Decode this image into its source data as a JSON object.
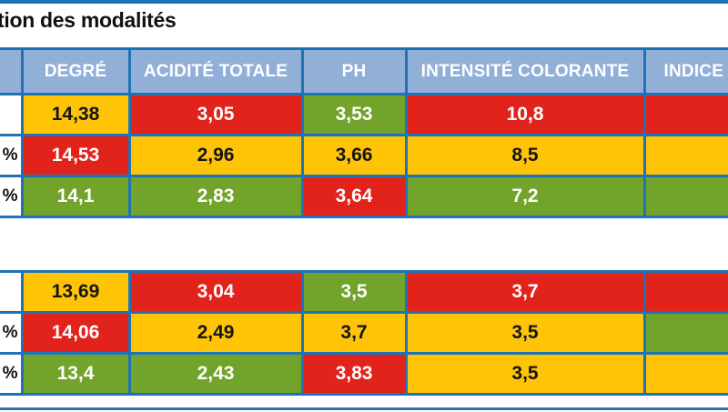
{
  "title": "tion des modalités",
  "colors": {
    "status_red": "#E2231B",
    "status_yellow": "#FFC405",
    "status_green": "#72A32B",
    "header_blue": "#92AFD8",
    "border_blue": "#1E73B8",
    "top_rule_blue": "#1E73BE",
    "bottom_rule_blue": "#2E75B6"
  },
  "header": {
    "label": "",
    "degre": "DEGRÉ",
    "acidite": "ACIDITÉ TOTALE",
    "ph": "PH",
    "intensite": "INTENSITÉ COLORANTE",
    "indice": "INDICE"
  },
  "table1": {
    "rows": [
      {
        "label": "",
        "degre": {
          "v": "14,38",
          "c": "yellow"
        },
        "acidite": {
          "v": "3,05",
          "c": "red"
        },
        "ph": {
          "v": "3,53",
          "c": "green"
        },
        "intensite": {
          "v": "10,8",
          "c": "red"
        },
        "indice": {
          "v": "",
          "c": "red"
        }
      },
      {
        "label": "%",
        "degre": {
          "v": "14,53",
          "c": "red"
        },
        "acidite": {
          "v": "2,96",
          "c": "yellow"
        },
        "ph": {
          "v": "3,66",
          "c": "yellow"
        },
        "intensite": {
          "v": "8,5",
          "c": "yellow"
        },
        "indice": {
          "v": "",
          "c": "yellow"
        }
      },
      {
        "label": "%",
        "degre": {
          "v": "14,1",
          "c": "green"
        },
        "acidite": {
          "v": "2,83",
          "c": "green"
        },
        "ph": {
          "v": "3,64",
          "c": "red"
        },
        "intensite": {
          "v": "7,2",
          "c": "green"
        },
        "indice": {
          "v": "",
          "c": "green"
        }
      }
    ]
  },
  "table2": {
    "rows": [
      {
        "label": "",
        "degre": {
          "v": "13,69",
          "c": "yellow"
        },
        "acidite": {
          "v": "3,04",
          "c": "red"
        },
        "ph": {
          "v": "3,5",
          "c": "green"
        },
        "intensite": {
          "v": "3,7",
          "c": "red"
        },
        "indice": {
          "v": "",
          "c": "red"
        }
      },
      {
        "label": "%",
        "degre": {
          "v": "14,06",
          "c": "red"
        },
        "acidite": {
          "v": "2,49",
          "c": "yellow"
        },
        "ph": {
          "v": "3,7",
          "c": "yellow"
        },
        "intensite": {
          "v": "3,5",
          "c": "yellow"
        },
        "indice": {
          "v": "",
          "c": "green"
        }
      },
      {
        "label": "%",
        "degre": {
          "v": "13,4",
          "c": "green"
        },
        "acidite": {
          "v": "2,43",
          "c": "green"
        },
        "ph": {
          "v": "3,83",
          "c": "red"
        },
        "intensite": {
          "v": "3,5",
          "c": "yellow"
        },
        "indice": {
          "v": "",
          "c": "yellow"
        }
      }
    ]
  }
}
